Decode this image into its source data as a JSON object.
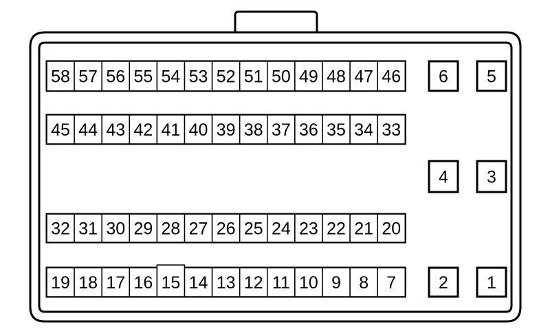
{
  "connector": {
    "rows": [
      [
        "58",
        "57",
        "56",
        "55",
        "54",
        "53",
        "52",
        "51",
        "50",
        "49",
        "48",
        "47",
        "46"
      ],
      [
        "45",
        "44",
        "43",
        "42",
        "41",
        "40",
        "39",
        "38",
        "37",
        "36",
        "35",
        "34",
        "33"
      ],
      [
        "32",
        "31",
        "30",
        "29",
        "28",
        "27",
        "26",
        "25",
        "24",
        "23",
        "22",
        "21",
        "20"
      ],
      [
        "19",
        "18",
        "17",
        "16",
        "15",
        "14",
        "13",
        "12",
        "11",
        "10",
        "9",
        "8",
        "7"
      ]
    ],
    "large_pins": [
      [
        "6",
        "5"
      ],
      [
        "4",
        "3"
      ],
      [
        "2",
        "1"
      ]
    ],
    "highlighted_pin": "15"
  }
}
